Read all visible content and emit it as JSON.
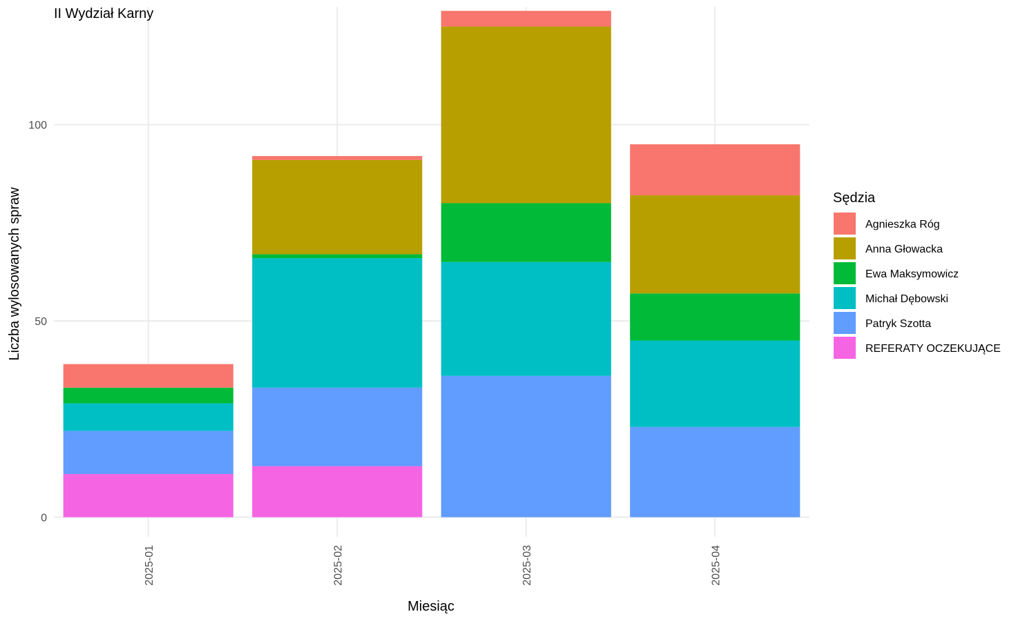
{
  "chart_data": {
    "type": "bar",
    "stacked": true,
    "title": "II Wydział Karny",
    "xlabel": "Miesiąc",
    "ylabel": "Liczba wylosowanych spraw",
    "categories": [
      "2025-01",
      "2025-02",
      "2025-03",
      "2025-04"
    ],
    "ylim": [
      -5,
      130
    ],
    "yticks": [
      0,
      50,
      100
    ],
    "grid": true,
    "legend": {
      "title": "Sędzia",
      "position": "right"
    },
    "series": [
      {
        "name": "REFERATY OCZEKUJĄCE",
        "color": "#F564E3",
        "values": [
          11,
          13,
          0,
          0
        ]
      },
      {
        "name": "Patryk Szotta",
        "color": "#619CFF",
        "values": [
          11,
          20,
          36,
          23
        ]
      },
      {
        "name": "Michał Dębowski",
        "color": "#00BFC4",
        "values": [
          7,
          33,
          29,
          22
        ]
      },
      {
        "name": "Ewa Maksymowicz",
        "color": "#00BA38",
        "values": [
          4,
          1,
          15,
          12
        ]
      },
      {
        "name": "Anna Głowacka",
        "color": "#B79F00",
        "values": [
          0,
          24,
          45,
          25
        ]
      },
      {
        "name": "Agnieszka Róg",
        "color": "#F8766D",
        "values": [
          6,
          1,
          4,
          13
        ]
      }
    ],
    "legend_order": [
      "Agnieszka Róg",
      "Anna Głowacka",
      "Ewa Maksymowicz",
      "Michał Dębowski",
      "Patryk Szotta",
      "REFERATY OCZEKUJĄCE"
    ]
  }
}
